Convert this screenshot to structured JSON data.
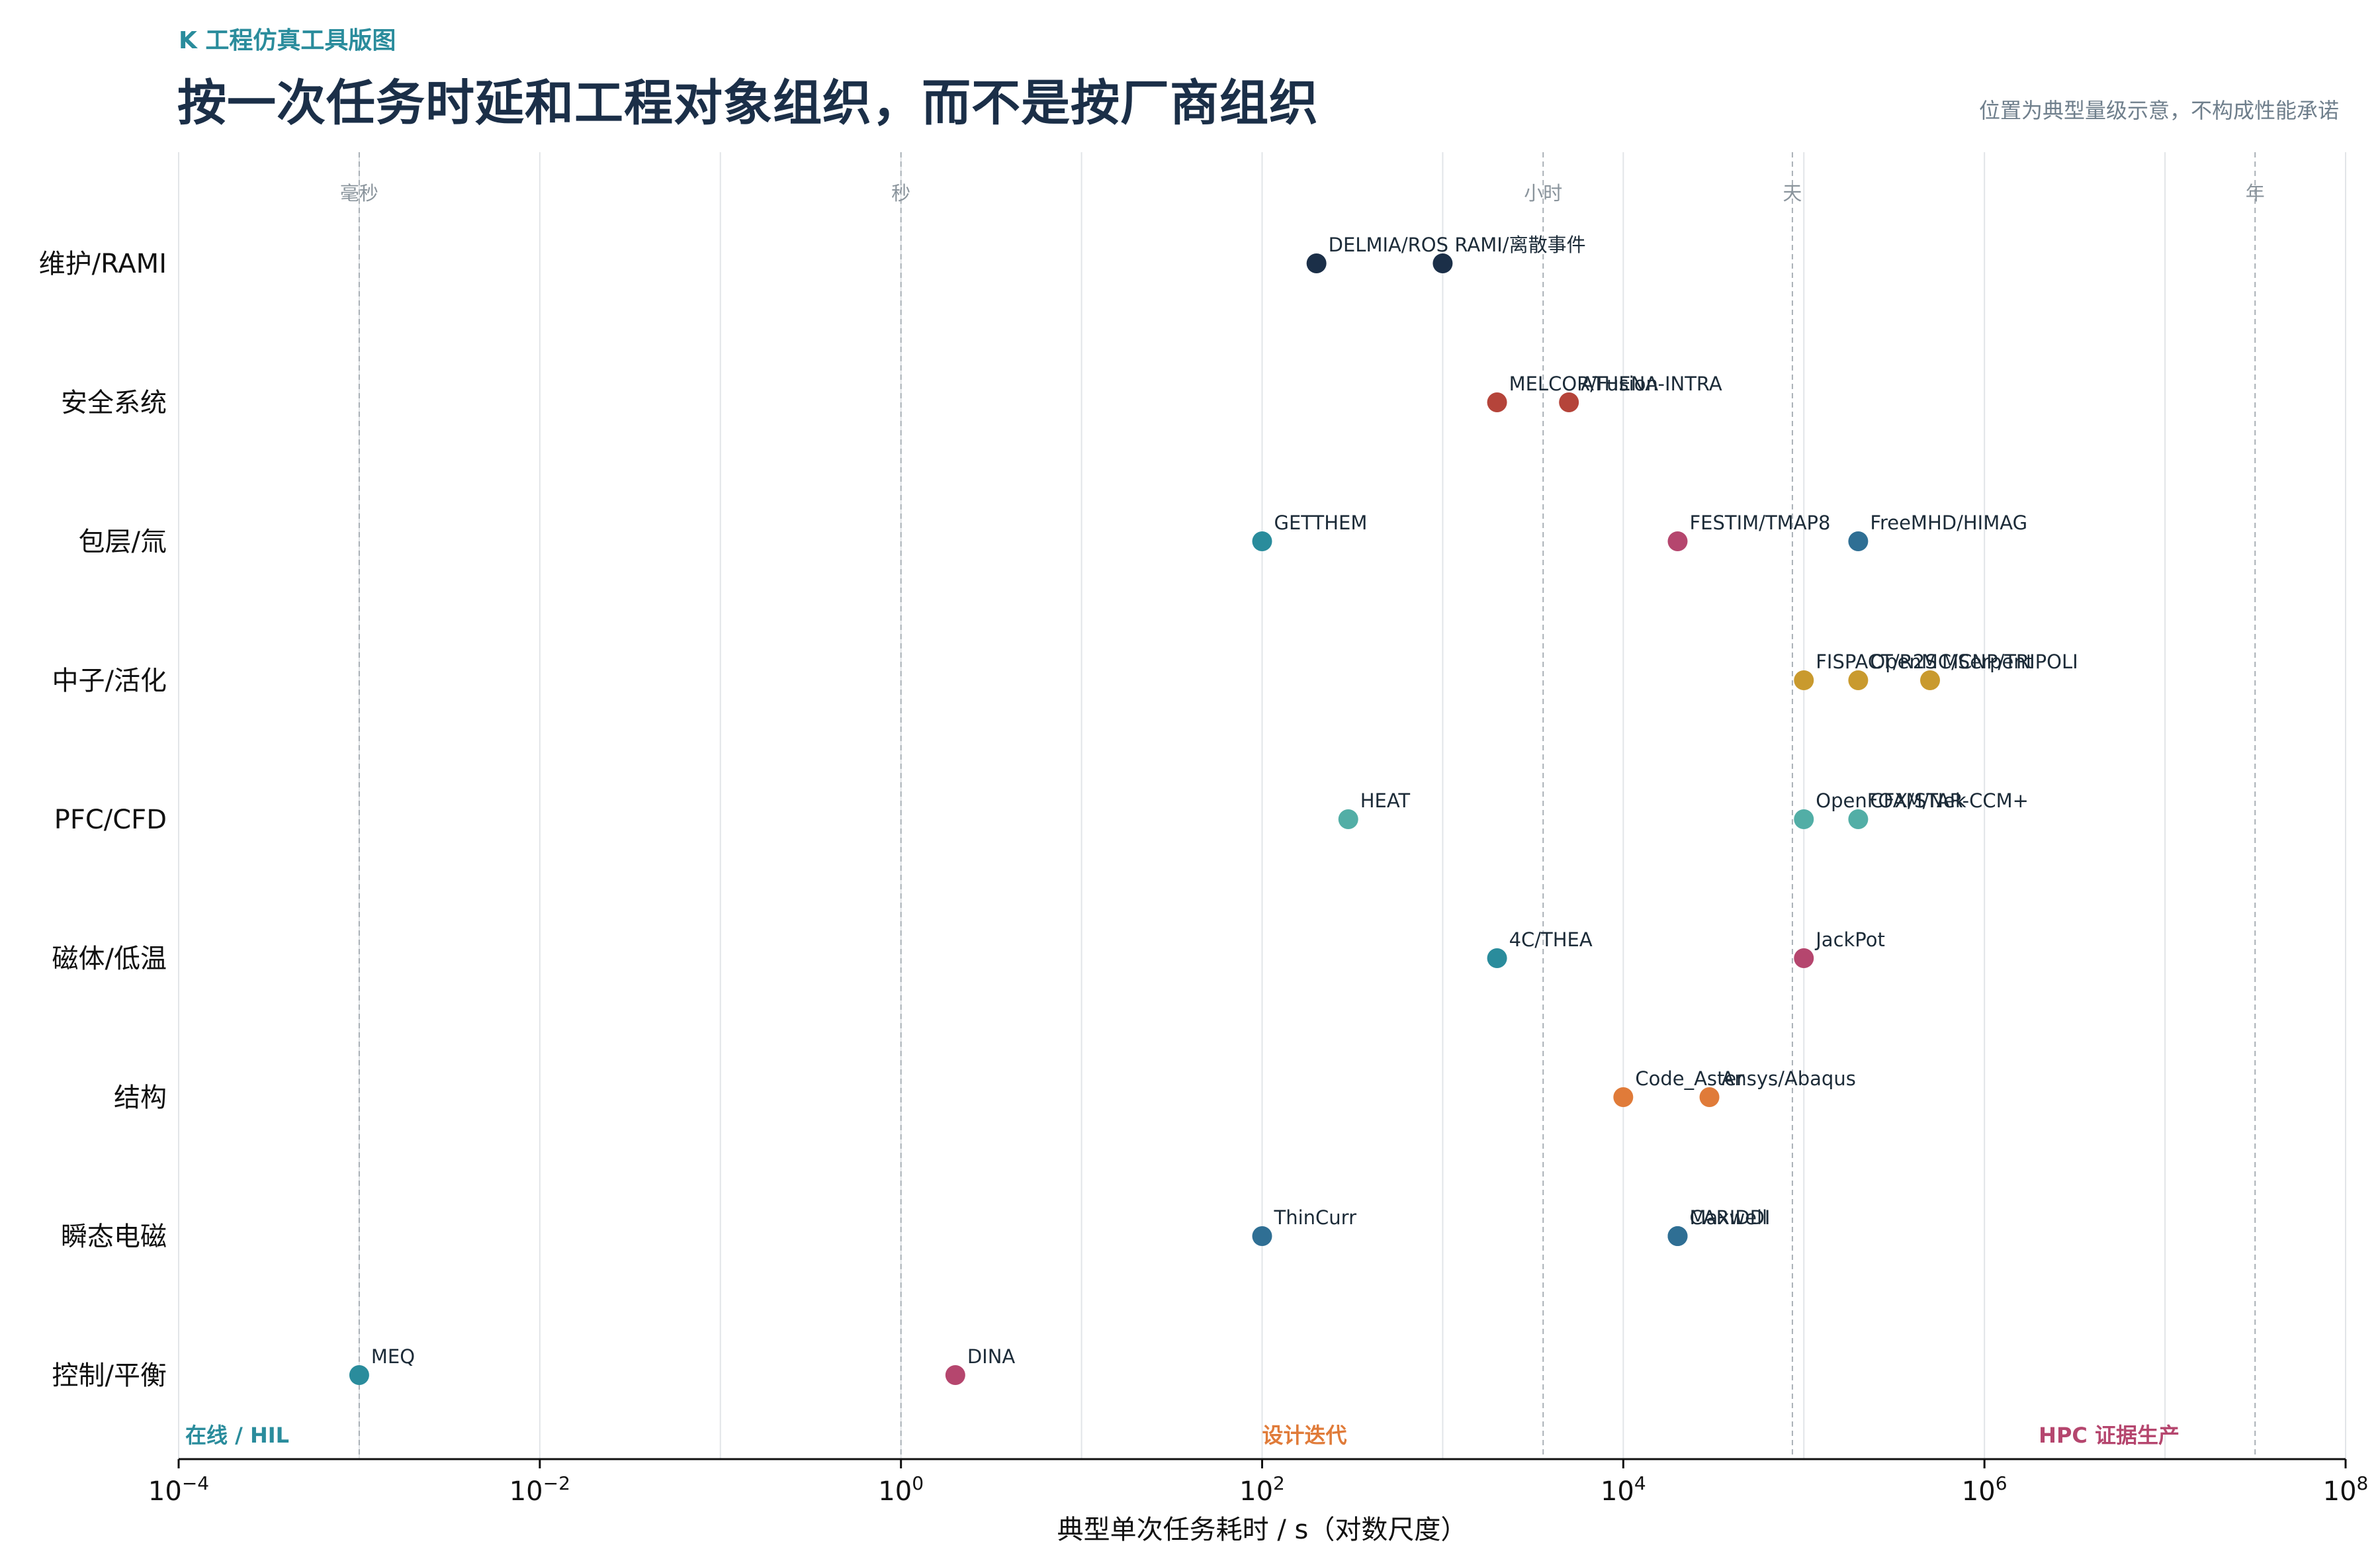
{
  "header": {
    "kicker": "K  工程仿真工具版图",
    "title": "按一次任务时延和工程对象组织，而不是按厂商组织",
    "note": "位置为典型量级示意，不构成性能承诺"
  },
  "chart_data": {
    "type": "scatter",
    "xlabel": "典型单次任务耗时 / s（对数尺度）",
    "x_scale": "log",
    "xlim": [
      0.0001,
      100000000
    ],
    "x_ticks": [
      {
        "base": "10",
        "exp": "−4",
        "value": 0.0001
      },
      {
        "base": "10",
        "exp": "−2",
        "value": 0.01
      },
      {
        "base": "10",
        "exp": "0",
        "value": 1
      },
      {
        "base": "10",
        "exp": "2",
        "value": 100
      },
      {
        "base": "10",
        "exp": "4",
        "value": 10000
      },
      {
        "base": "10",
        "exp": "6",
        "value": 1000000
      },
      {
        "base": "10",
        "exp": "8",
        "value": 100000000
      }
    ],
    "grid": true,
    "categories": [
      "维护/RAMI",
      "安全系统",
      "包层/氚",
      "中子/活化",
      "PFC/CFD",
      "磁体/低温",
      "结构",
      "瞬态电磁",
      "控制/平衡"
    ],
    "reference_lines": [
      {
        "label": "毫秒",
        "value": 0.001
      },
      {
        "label": "秒",
        "value": 1
      },
      {
        "label": "小时",
        "value": 3600
      },
      {
        "label": "天",
        "value": 86400
      },
      {
        "label": "年",
        "value": 31536000
      }
    ],
    "bands": [
      {
        "label": "在线 / HIL",
        "color": "#2a8c9c",
        "position": "left"
      },
      {
        "label": "设计迭代",
        "color": "#e07b39",
        "position": "center"
      },
      {
        "label": "HPC 证据生产",
        "color": "#b5466e",
        "position": "right"
      }
    ],
    "points": [
      {
        "category": "维护/RAMI",
        "name": "DELMIA/ROS",
        "x": 200,
        "color": "#1b2f48"
      },
      {
        "category": "维护/RAMI",
        "name": "RAMI/离散事件",
        "x": 1000,
        "color": "#1b2f48"
      },
      {
        "category": "安全系统",
        "name": "MELCOR/Fusion",
        "x": 2000,
        "color": "#b5443a"
      },
      {
        "category": "安全系统",
        "name": "ATHENA-INTRA",
        "x": 5000,
        "color": "#b5443a"
      },
      {
        "category": "包层/氚",
        "name": "GETTHEM",
        "x": 100,
        "color": "#2a8c9c"
      },
      {
        "category": "包层/氚",
        "name": "FESTIM/TMAP8",
        "x": 20000,
        "color": "#b5466e"
      },
      {
        "category": "包层/氚",
        "name": "FreeMHD/HIMAG",
        "x": 200000,
        "color": "#2f6f94"
      },
      {
        "category": "中子/活化",
        "name": "FISPACT/R2S",
        "x": 100000,
        "color": "#c99a2e"
      },
      {
        "category": "中子/活化",
        "name": "OpenMC/Serpent",
        "x": 200000,
        "color": "#c99a2e"
      },
      {
        "category": "中子/活化",
        "name": "MCNP/TRIPOLI",
        "x": 500000,
        "color": "#c99a2e"
      },
      {
        "category": "PFC/CFD",
        "name": "HEAT",
        "x": 300,
        "color": "#52aea6"
      },
      {
        "category": "PFC/CFD",
        "name": "OpenFOAM/Nek",
        "x": 100000,
        "color": "#52aea6"
      },
      {
        "category": "PFC/CFD",
        "name": "CFX/STAR-CCM+",
        "x": 200000,
        "color": "#52aea6"
      },
      {
        "category": "磁体/低温",
        "name": "4C/THEA",
        "x": 2000,
        "color": "#2a8c9c"
      },
      {
        "category": "磁体/低温",
        "name": "JackPot",
        "x": 100000,
        "color": "#b5466e"
      },
      {
        "category": "结构",
        "name": "Code_Aster",
        "x": 10000,
        "color": "#e07b39"
      },
      {
        "category": "结构",
        "name": "Ansys/Abaqus",
        "x": 30000,
        "color": "#e07b39"
      },
      {
        "category": "瞬态电磁",
        "name": "ThinCurr",
        "x": 100,
        "color": "#2f6f94"
      },
      {
        "category": "瞬态电磁",
        "name": "CARIDDI",
        "x": 20000,
        "color": "#2f6f94"
      },
      {
        "category": "瞬态电磁",
        "name": "Maxwell",
        "x": 20000,
        "color": "#2f6f94"
      },
      {
        "category": "控制/平衡",
        "name": "MEQ",
        "x": 0.001,
        "color": "#2a8c9c"
      },
      {
        "category": "控制/平衡",
        "name": "DINA",
        "x": 2,
        "color": "#b5466e"
      }
    ]
  }
}
